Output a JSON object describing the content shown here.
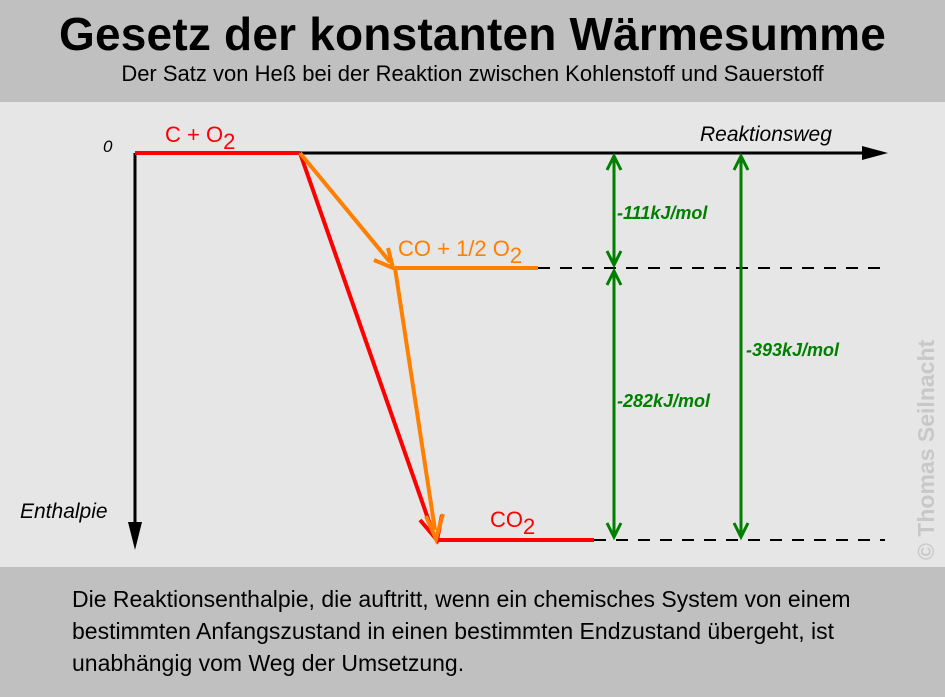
{
  "header": {
    "title": "Gesetz der konstanten Wärmesumme",
    "subtitle": "Der Satz von Heß bei der Reaktion zwischen Kohlenstoff und Sauerstoff"
  },
  "diagram": {
    "axis_x_label": "Reaktionsweg",
    "axis_y_label": "Enthalpie",
    "zero_label": "0",
    "levels": {
      "start": {
        "label": "C + O",
        "sub": "2",
        "value": 0
      },
      "intermediate": {
        "label": "CO + 1/2 O",
        "sub": "2",
        "value": -111
      },
      "end": {
        "label": "CO",
        "sub": "2",
        "value": -393
      }
    },
    "deltas": {
      "step1": "-111kJ/mol",
      "step2": "-282kJ/mol",
      "total": "-393kJ/mol"
    },
    "colors": {
      "direct": "#ff0000",
      "stepwise": "#ff7f00",
      "arrows": "#007f00",
      "axis": "#000000"
    },
    "watermark": "© Thomas Seilnacht"
  },
  "footer": {
    "text": "Die Reaktionsenthalpie, die auftritt, wenn ein chemisches System von einem bestimmten Anfangszustand in einen bestimmten Endzustand übergeht, ist unabhängig vom Weg der Umsetzung."
  }
}
